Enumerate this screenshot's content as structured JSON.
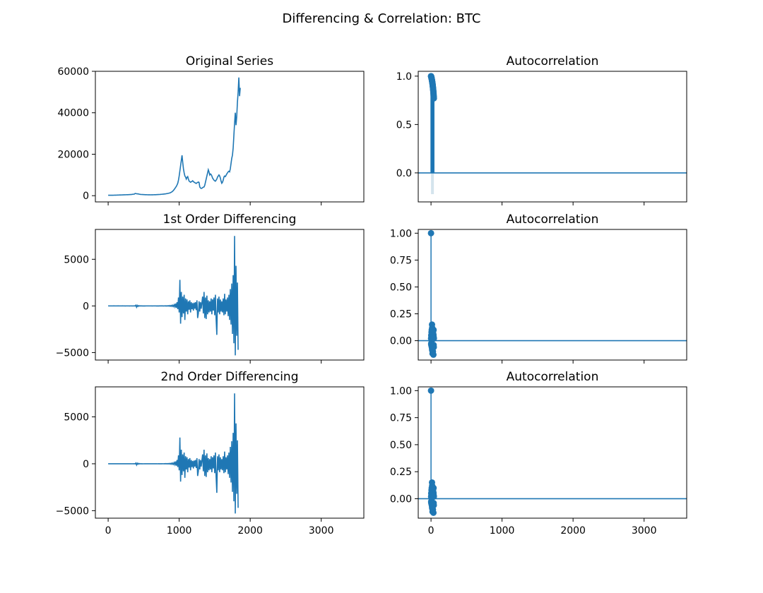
{
  "figure": {
    "title": "Differencing & Correlation: BTC",
    "line_color": "#1f77b4",
    "band_color": "#c9dde8"
  },
  "chart_data": [
    {
      "type": "line",
      "title": "Original Series",
      "xlim": [
        -180,
        3600
      ],
      "ylim": [
        -3000,
        60000
      ],
      "xticks": [
        0,
        1000,
        2000,
        3000
      ],
      "yticks": [
        0,
        20000,
        40000,
        60000
      ],
      "ytick_labels": [
        "0",
        "20000",
        "40000",
        "60000"
      ],
      "show_xtick_labels": false,
      "x_step": 10,
      "values": [
        200,
        210,
        220,
        230,
        240,
        230,
        220,
        230,
        240,
        250,
        260,
        270,
        280,
        290,
        300,
        320,
        330,
        340,
        350,
        360,
        380,
        400,
        420,
        430,
        440,
        450,
        460,
        470,
        480,
        500,
        520,
        540,
        560,
        600,
        650,
        700,
        740,
        780,
        1100,
        1000,
        950,
        900,
        850,
        800,
        700,
        650,
        600,
        580,
        560,
        540,
        520,
        500,
        480,
        470,
        460,
        450,
        440,
        430,
        430,
        420,
        410,
        420,
        430,
        440,
        450,
        460,
        470,
        480,
        500,
        520,
        540,
        560,
        580,
        600,
        630,
        660,
        700,
        740,
        780,
        820,
        860,
        900,
        960,
        1020,
        1080,
        1160,
        1250,
        1350,
        1500,
        1700,
        1900,
        2200,
        2600,
        3000,
        3500,
        4000,
        4500,
        5200,
        6000,
        7500,
        9500,
        12000,
        14500,
        17000,
        19500,
        16000,
        13000,
        11000,
        9500,
        9000,
        8000,
        8800,
        9200,
        8000,
        7000,
        6800,
        6500,
        6700,
        6900,
        7200,
        6800,
        6500,
        6300,
        6100,
        5900,
        6200,
        6400,
        6600,
        6400,
        4200,
        3700,
        3500,
        3600,
        3900,
        4100,
        4200,
        5000,
        6500,
        8000,
        9500,
        11000,
        12500,
        11500,
        10000,
        10500,
        10200,
        9500,
        8500,
        8000,
        7500,
        7200,
        7000,
        7500,
        8000,
        9000,
        9500,
        10000,
        9500,
        8500,
        7000,
        6000,
        6500,
        7500,
        9000,
        9500,
        9200,
        9800,
        10500,
        11000,
        11500,
        11800,
        11500,
        13000,
        15500,
        18000,
        19500,
        23000,
        29000,
        35000,
        40000,
        34000,
        38000,
        45000,
        50000,
        57000,
        48000,
        52000
      ]
    },
    {
      "type": "line",
      "title": "Autocorrelation",
      "xlim": [
        -180,
        3600
      ],
      "ylim": [
        -0.3,
        1.05
      ],
      "xticks": [
        0,
        1000,
        2000,
        3000
      ],
      "yticks": [
        0.0,
        0.5,
        1.0
      ],
      "ytick_labels": [
        "0.0",
        "0.5",
        "1.0"
      ],
      "show_xtick_labels": false,
      "lags": 40,
      "acf": [
        1.0,
        0.998,
        0.995,
        0.993,
        0.99,
        0.987,
        0.984,
        0.981,
        0.978,
        0.974,
        0.971,
        0.967,
        0.963,
        0.959,
        0.955,
        0.95,
        0.946,
        0.941,
        0.936,
        0.931,
        0.926,
        0.921,
        0.915,
        0.909,
        0.903,
        0.897,
        0.891,
        0.884,
        0.877,
        0.87,
        0.862,
        0.854,
        0.846,
        0.838,
        0.829,
        0.82,
        0.811,
        0.801,
        0.791,
        0.78,
        0.77
      ],
      "conf_min": -0.22
    },
    {
      "type": "line",
      "title": "1st Order Differencing",
      "xlim": [
        -180,
        3600
      ],
      "ylim": [
        -5800,
        8200
      ],
      "xticks": [
        0,
        1000,
        2000,
        3000
      ],
      "yticks": [
        -5000,
        0,
        5000
      ],
      "ytick_labels": [
        "−5000",
        "0",
        "5000"
      ],
      "show_xtick_labels": false,
      "x_step": 10,
      "values": [
        0,
        2,
        -2,
        1,
        -1,
        2,
        -2,
        1,
        0,
        2,
        -1,
        1,
        -2,
        2,
        0,
        1,
        -1,
        2,
        -2,
        1,
        0,
        3,
        -2,
        4,
        -3,
        2,
        -1,
        3,
        -2,
        4,
        -3,
        3,
        -2,
        5,
        -4,
        8,
        -6,
        10,
        -8,
        80,
        -130,
        60,
        -50,
        40,
        -20,
        15,
        -10,
        8,
        -6,
        5,
        -4,
        4,
        -3,
        2,
        -2,
        3,
        -2,
        2,
        -1,
        2,
        -2,
        3,
        -3,
        2,
        -2,
        3,
        -2,
        4,
        -3,
        5,
        -4,
        6,
        -5,
        8,
        -6,
        10,
        -8,
        12,
        -10,
        15,
        -12,
        20,
        -15,
        25,
        -20,
        30,
        -25,
        45,
        -35,
        60,
        -50,
        80,
        -60,
        120,
        -90,
        250,
        -200,
        400,
        -350,
        900,
        -700,
        2800,
        -1900,
        1500,
        -1200,
        1000,
        -800,
        1200,
        -1500,
        800,
        -600,
        700,
        -900,
        500,
        -400,
        600,
        -700,
        400,
        -350,
        300,
        -500,
        350,
        -300,
        400,
        -450,
        600,
        -1300,
        -800,
        500,
        -600,
        400,
        -300,
        350,
        1000,
        -800,
        1500,
        -1300,
        900,
        -1400,
        1100,
        -900,
        600,
        -700,
        500,
        -600,
        800,
        -900,
        700,
        -500,
        900,
        -1000,
        1200,
        -1400,
        -3100,
        800,
        -700,
        1000,
        -900,
        700,
        -600,
        500,
        -700,
        800,
        -1000,
        1300,
        -900,
        700,
        -600,
        900,
        -1100,
        1200,
        -1500,
        1800,
        -2000,
        2400,
        -3000,
        3300,
        -4000,
        7500,
        -5300,
        4300,
        -3200,
        2500,
        -4700
      ]
    },
    {
      "type": "bar",
      "title": "Autocorrelation",
      "xlim": [
        -180,
        3600
      ],
      "ylim": [
        -0.18,
        1.035
      ],
      "xticks": [
        0,
        1000,
        2000,
        3000
      ],
      "yticks": [
        0.0,
        0.25,
        0.5,
        0.75,
        1.0
      ],
      "ytick_labels": [
        "0.00",
        "0.25",
        "0.50",
        "0.75",
        "1.00"
      ],
      "show_xtick_labels": false,
      "lags": 40,
      "acf": [
        1.0,
        0.02,
        -0.03,
        0.05,
        -0.04,
        0.03,
        -0.02,
        0.08,
        0.06,
        -0.05,
        0.1,
        -0.06,
        0.04,
        -0.03,
        0.15,
        -0.08,
        0.12,
        -0.09,
        0.05,
        -0.04,
        0.08,
        -0.12,
        0.06,
        -0.05,
        0.1,
        -0.07,
        0.03,
        -0.1,
        0.07,
        -0.06,
        0.04,
        0.09,
        -0.05,
        0.06,
        -0.13,
        0.05,
        0.1,
        -0.04,
        0.03,
        -0.06,
        0.02
      ],
      "conf_min": -0.03
    },
    {
      "type": "line",
      "title": "2nd Order Differencing",
      "xlim": [
        -180,
        3600
      ],
      "ylim": [
        -5800,
        8200
      ],
      "xticks": [
        0,
        1000,
        2000,
        3000
      ],
      "yticks": [
        -5000,
        0,
        5000
      ],
      "ytick_labels": [
        "−5000",
        "0",
        "5000"
      ],
      "show_xtick_labels": true,
      "x_step": 10,
      "values": [
        0,
        2,
        -2,
        1,
        -1,
        2,
        -2,
        1,
        0,
        2,
        -1,
        1,
        -2,
        2,
        0,
        1,
        -1,
        2,
        -2,
        1,
        0,
        3,
        -2,
        4,
        -3,
        2,
        -1,
        3,
        -2,
        4,
        -3,
        3,
        -2,
        5,
        -4,
        8,
        -6,
        10,
        -8,
        80,
        -130,
        60,
        -50,
        40,
        -20,
        15,
        -10,
        8,
        -6,
        5,
        -4,
        4,
        -3,
        2,
        -2,
        3,
        -2,
        2,
        -1,
        2,
        -2,
        3,
        -3,
        2,
        -2,
        3,
        -2,
        4,
        -3,
        5,
        -4,
        6,
        -5,
        8,
        -6,
        10,
        -8,
        12,
        -10,
        15,
        -12,
        20,
        -15,
        25,
        -20,
        30,
        -25,
        45,
        -35,
        60,
        -50,
        80,
        -60,
        120,
        -90,
        250,
        -200,
        400,
        -350,
        900,
        -700,
        2800,
        -1900,
        1500,
        -1200,
        1000,
        -800,
        1200,
        -1500,
        800,
        -600,
        700,
        -900,
        500,
        -400,
        600,
        -700,
        400,
        -350,
        300,
        -500,
        350,
        -300,
        400,
        -450,
        600,
        -1300,
        -800,
        500,
        -600,
        400,
        -300,
        350,
        1000,
        -800,
        1500,
        -1300,
        900,
        -1400,
        1100,
        -900,
        600,
        -700,
        500,
        -600,
        800,
        -900,
        700,
        -500,
        900,
        -1000,
        1200,
        -1400,
        -3100,
        800,
        -700,
        1000,
        -900,
        700,
        -600,
        500,
        -700,
        800,
        -1000,
        1300,
        -900,
        700,
        -600,
        900,
        -1100,
        1200,
        -1500,
        1800,
        -2000,
        2400,
        -3000,
        3300,
        -4000,
        7500,
        -5300,
        4300,
        -3200,
        2500,
        -4700
      ]
    },
    {
      "type": "bar",
      "title": "Autocorrelation",
      "xlim": [
        -180,
        3600
      ],
      "ylim": [
        -0.18,
        1.035
      ],
      "xticks": [
        0,
        1000,
        2000,
        3000
      ],
      "yticks": [
        0.0,
        0.25,
        0.5,
        0.75,
        1.0
      ],
      "ytick_labels": [
        "0.00",
        "0.25",
        "0.50",
        "0.75",
        "1.00"
      ],
      "show_xtick_labels": true,
      "lags": 40,
      "acf": [
        1.0,
        0.02,
        -0.03,
        0.05,
        -0.04,
        0.03,
        -0.02,
        0.08,
        0.06,
        -0.05,
        0.1,
        -0.06,
        0.04,
        -0.03,
        0.15,
        -0.08,
        0.12,
        -0.09,
        0.05,
        -0.04,
        0.08,
        -0.12,
        0.06,
        -0.05,
        0.1,
        -0.07,
        0.03,
        -0.1,
        0.07,
        -0.06,
        0.04,
        0.09,
        -0.05,
        0.06,
        -0.13,
        0.05,
        0.1,
        -0.04,
        0.03,
        -0.06,
        0.02
      ],
      "conf_min": -0.03
    }
  ]
}
